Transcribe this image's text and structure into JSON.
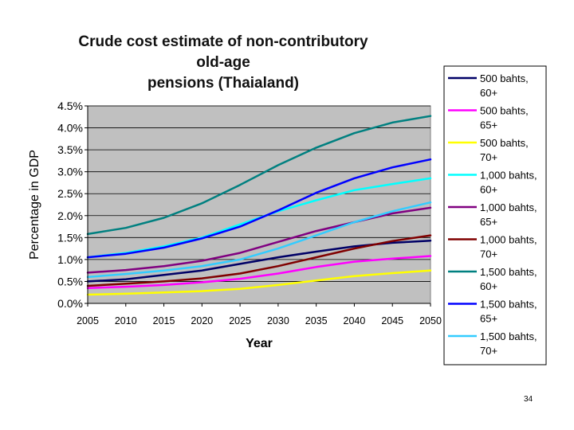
{
  "slide": {
    "page_number": "34"
  },
  "chart_data": {
    "type": "line",
    "title_lines": [
      "Crude cost estimate of non-contributory old-age",
      "pensions (Thaialand)"
    ],
    "xlabel": "Year",
    "ylabel": "Percentage in GDP",
    "xlim": [
      2005,
      2050
    ],
    "ylim": [
      0.0,
      4.5
    ],
    "x_ticks": [
      "2005",
      "2010",
      "2015",
      "2020",
      "2025",
      "2030",
      "2035",
      "2040",
      "2045",
      "2050"
    ],
    "y_ticks": [
      "0.0%",
      "0.5%",
      "1.0%",
      "1.5%",
      "2.0%",
      "2.5%",
      "3.0%",
      "3.5%",
      "4.0%",
      "4.5%"
    ],
    "plot_background": "#c0c0c0",
    "grid": "horizontal",
    "legend_position": "right",
    "x": [
      2005,
      2010,
      2015,
      2020,
      2025,
      2030,
      2035,
      2040,
      2045,
      2050
    ],
    "series": [
      {
        "name_lines": [
          "500 bahts,",
          "60+"
        ],
        "color": "#000066",
        "values": [
          0.5,
          0.55,
          0.65,
          0.75,
          0.9,
          1.05,
          1.18,
          1.3,
          1.38,
          1.43
        ]
      },
      {
        "name_lines": [
          "500 bahts,",
          "65+"
        ],
        "color": "#ff00ff",
        "values": [
          0.35,
          0.38,
          0.42,
          0.48,
          0.56,
          0.68,
          0.83,
          0.95,
          1.02,
          1.08
        ]
      },
      {
        "name_lines": [
          "500 bahts,",
          "70+"
        ],
        "color": "#ffff00",
        "values": [
          0.2,
          0.22,
          0.25,
          0.28,
          0.33,
          0.42,
          0.52,
          0.62,
          0.69,
          0.75
        ]
      },
      {
        "name_lines": [
          "1,000 bahts,",
          "60+"
        ],
        "color": "#00ffff",
        "values": [
          1.05,
          1.15,
          1.3,
          1.5,
          1.8,
          2.1,
          2.35,
          2.58,
          2.72,
          2.85
        ]
      },
      {
        "name_lines": [
          "1,000 bahts,",
          "65+"
        ],
        "color": "#800080",
        "values": [
          0.7,
          0.76,
          0.85,
          0.97,
          1.15,
          1.4,
          1.65,
          1.85,
          2.05,
          2.18
        ]
      },
      {
        "name_lines": [
          "1,000 bahts,",
          "70+"
        ],
        "color": "#800000",
        "values": [
          0.4,
          0.45,
          0.5,
          0.57,
          0.68,
          0.85,
          1.05,
          1.25,
          1.42,
          1.55
        ]
      },
      {
        "name_lines": [
          "1,500 bahts,",
          "60+"
        ],
        "color": "#008080",
        "values": [
          1.58,
          1.72,
          1.95,
          2.28,
          2.7,
          3.15,
          3.55,
          3.88,
          4.12,
          4.27
        ]
      },
      {
        "name_lines": [
          "1,500 bahts,",
          "65+"
        ],
        "color": "#0000ff",
        "values": [
          1.05,
          1.13,
          1.27,
          1.48,
          1.75,
          2.12,
          2.52,
          2.85,
          3.1,
          3.28
        ]
      },
      {
        "name_lines": [
          "1,500 bahts,",
          "70+"
        ],
        "color": "#33ccff",
        "values": [
          0.6,
          0.67,
          0.75,
          0.85,
          1.0,
          1.25,
          1.55,
          1.85,
          2.1,
          2.3
        ]
      }
    ]
  }
}
